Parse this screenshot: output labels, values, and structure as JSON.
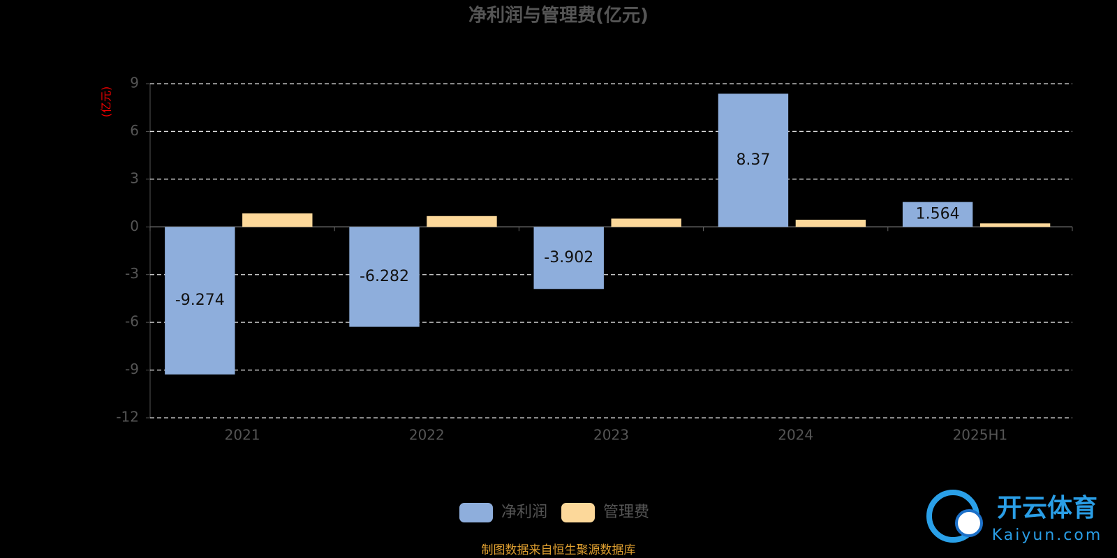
{
  "chart_data": {
    "type": "bar",
    "title": "净利润与管理费(亿元)",
    "y_label": "(亿元)",
    "categories": [
      "2021",
      "2022",
      "2023",
      "2024",
      "2025H1"
    ],
    "series": [
      {
        "name": "净利润",
        "color": "#8eaedc",
        "labels": true,
        "values": [
          -9.274,
          -6.282,
          -3.902,
          8.37,
          1.564
        ]
      },
      {
        "name": "管理费",
        "color": "#fcd89a",
        "labels": false,
        "values": [
          0.85,
          0.68,
          0.52,
          0.45,
          0.22
        ]
      }
    ],
    "ylim": [
      -12,
      9
    ],
    "yticks": [
      -12,
      -9,
      -6,
      -3,
      0,
      3,
      6,
      9
    ],
    "grid": true,
    "legend": "bottom"
  },
  "source": "制图数据来自恒生聚源数据库",
  "watermark": {
    "name": "开云体育",
    "site": "Kaiyun.com"
  }
}
